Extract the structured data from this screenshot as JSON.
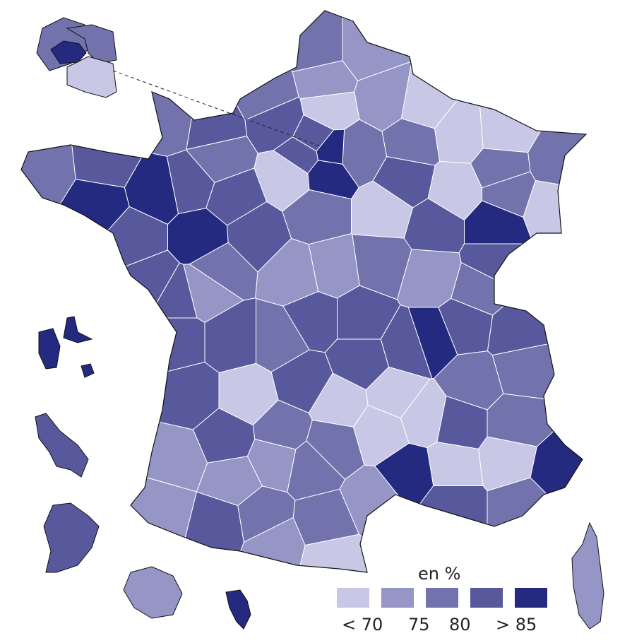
{
  "legend": {
    "title": "en %",
    "labels": [
      "< 70",
      "75",
      "80",
      "> 85"
    ],
    "classes": [
      {
        "range": "< 70",
        "color": "#c8c8e6"
      },
      {
        "range": "70-75",
        "color": "#9595c6"
      },
      {
        "range": "75-80",
        "color": "#7272ac"
      },
      {
        "range": "80-85",
        "color": "#58589c"
      },
      {
        "range": "> 85",
        "color": "#232a80"
      }
    ]
  },
  "colors": {
    "border": "#111111",
    "inner_border": "#ffffff"
  }
}
